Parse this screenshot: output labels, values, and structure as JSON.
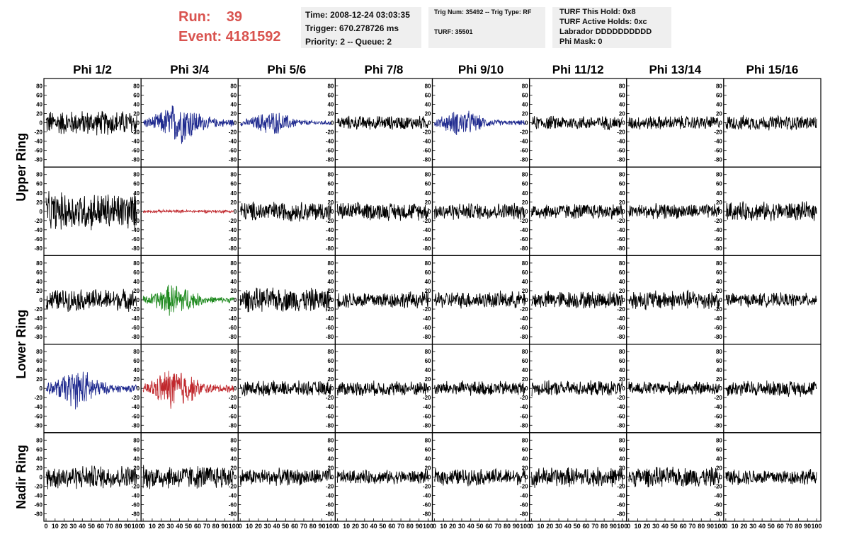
{
  "header": {
    "run_label": "Run:",
    "run_value": "39",
    "event_label": "Event:",
    "event_value": "4181592"
  },
  "info_time": {
    "time": "Time: 2008-12-24 03:03:35",
    "trigger": "Trigger: 670.278726 ms",
    "priority": "Priority: 2 -- Queue: 2"
  },
  "info_trig": {
    "trig": "Trig Num: 35492 -- Trig Type: RF",
    "turf": "TURF: 35501"
  },
  "info_turf": {
    "hold": "TURF This Hold: 0x8",
    "active": "TURF Active Holds: 0xc",
    "labrador": "Labrador DDDDDDDDDD",
    "phimask": "Phi Mask: 0"
  },
  "colors": {
    "black": "#000000",
    "blue": "#1f2a8f",
    "red": "#c0282d",
    "green": "#1f8a1f",
    "title_red": "#d9534f"
  },
  "chart_data": {
    "type": "line",
    "columns": [
      "Phi 1/2",
      "Phi 3/4",
      "Phi 5/6",
      "Phi 7/8",
      "Phi 9/10",
      "Phi 11/12",
      "Phi 13/14",
      "Phi 15/16"
    ],
    "ring_labels": [
      {
        "text": "Upper Ring",
        "rows": [
          0,
          1
        ]
      },
      {
        "text": "Lower Ring",
        "rows": [
          2,
          3
        ]
      },
      {
        "text": "Nadir Ring",
        "rows": [
          4
        ]
      }
    ],
    "ylim": [
      -90,
      90
    ],
    "ytick_labels": [
      "80",
      "60",
      "40",
      "20",
      "0",
      "-20",
      "-40",
      "-60",
      "-80"
    ],
    "ytick_values": [
      80,
      60,
      40,
      20,
      0,
      -20,
      -40,
      -60,
      -80
    ],
    "xlim": [
      0,
      100
    ],
    "xtick_labels": [
      "0",
      "10",
      "20",
      "30",
      "40",
      "50",
      "60",
      "70",
      "80",
      "90",
      "100"
    ],
    "xtick_values": [
      0,
      10,
      20,
      30,
      40,
      50,
      60,
      70,
      80,
      90,
      100
    ],
    "panels": [
      [
        {
          "c": "black",
          "a": 25
        },
        {
          "c": "blue",
          "a": 32,
          "pk": 0.4
        },
        {
          "c": "blue",
          "a": 18,
          "pk": 0.35
        },
        {
          "c": "black",
          "a": 14
        },
        {
          "c": "blue",
          "a": 20,
          "pk": 0.3
        },
        {
          "c": "black",
          "a": 14
        },
        {
          "c": "black",
          "a": 14
        },
        {
          "c": "black",
          "a": 15
        }
      ],
      [
        {
          "c": "black",
          "a": 38
        },
        {
          "c": "red",
          "a": 3
        },
        {
          "c": "black",
          "a": 20
        },
        {
          "c": "black",
          "a": 18
        },
        {
          "c": "black",
          "a": 17
        },
        {
          "c": "black",
          "a": 16
        },
        {
          "c": "black",
          "a": 15
        },
        {
          "c": "black",
          "a": 19
        }
      ],
      [
        {
          "c": "black",
          "a": 22
        },
        {
          "c": "green",
          "a": 25,
          "pk": 0.35
        },
        {
          "c": "black",
          "a": 24
        },
        {
          "c": "black",
          "a": 17
        },
        {
          "c": "black",
          "a": 17
        },
        {
          "c": "black",
          "a": 18
        },
        {
          "c": "black",
          "a": 20
        },
        {
          "c": "black",
          "a": 14
        }
      ],
      [
        {
          "c": "blue",
          "a": 30,
          "pk": 0.35
        },
        {
          "c": "red",
          "a": 33,
          "pk": 0.35
        },
        {
          "c": "black",
          "a": 15
        },
        {
          "c": "black",
          "a": 15
        },
        {
          "c": "black",
          "a": 15
        },
        {
          "c": "black",
          "a": 15
        },
        {
          "c": "black",
          "a": 14
        },
        {
          "c": "black",
          "a": 16
        }
      ],
      [
        {
          "c": "black",
          "a": 24
        },
        {
          "c": "black",
          "a": 24
        },
        {
          "c": "black",
          "a": 17
        },
        {
          "c": "black",
          "a": 14
        },
        {
          "c": "black",
          "a": 17
        },
        {
          "c": "black",
          "a": 20
        },
        {
          "c": "black",
          "a": 20
        },
        {
          "c": "black",
          "a": 16
        }
      ]
    ]
  }
}
